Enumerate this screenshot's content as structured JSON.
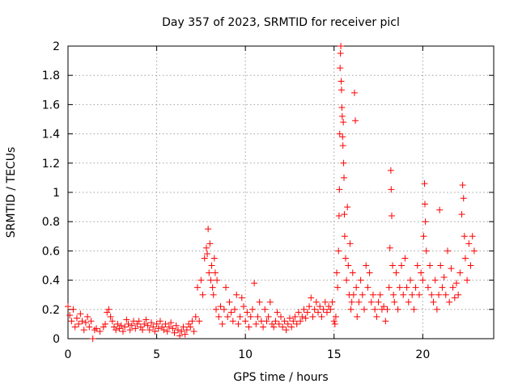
{
  "chart_data": {
    "type": "scatter",
    "title": "Day 357 of 2023, SRMTID for receiver picl",
    "xlabel": "GPS time / hours",
    "ylabel": "SRMTID / TECUs",
    "xlim": [
      0,
      24
    ],
    "ylim": [
      0,
      2
    ],
    "x_ticks": [
      0,
      5,
      10,
      15,
      20
    ],
    "y_ticks": [
      0,
      0.2,
      0.4,
      0.6,
      0.8,
      1,
      1.2,
      1.4,
      1.6,
      1.8,
      2
    ],
    "x_tick_labels": [
      "0",
      "5",
      "10",
      "15",
      "20"
    ],
    "y_tick_labels": [
      "0",
      "0.2",
      "0.4",
      "0.6",
      "0.8",
      "1",
      "1.2",
      "1.4",
      "1.6",
      "1.8",
      "2"
    ],
    "grid": true,
    "marker": "plus",
    "color": "#ff0000",
    "series": [
      {
        "name": "SRMTID",
        "points": [
          [
            0.0,
            0.22
          ],
          [
            0.1,
            0.16
          ],
          [
            0.2,
            0.12
          ],
          [
            0.3,
            0.2
          ],
          [
            0.4,
            0.08
          ],
          [
            0.5,
            0.14
          ],
          [
            0.6,
            0.1
          ],
          [
            0.7,
            0.17
          ],
          [
            0.8,
            0.12
          ],
          [
            0.9,
            0.06
          ],
          [
            1.0,
            0.11
          ],
          [
            1.1,
            0.15
          ],
          [
            1.2,
            0.08
          ],
          [
            1.3,
            0.12
          ],
          [
            1.4,
            0.0
          ],
          [
            1.5,
            0.06
          ],
          [
            1.6,
            0.07
          ],
          [
            1.8,
            0.05
          ],
          [
            2.0,
            0.08
          ],
          [
            2.1,
            0.1
          ],
          [
            2.2,
            0.18
          ],
          [
            2.3,
            0.2
          ],
          [
            2.4,
            0.15
          ],
          [
            2.5,
            0.12
          ],
          [
            2.6,
            0.08
          ],
          [
            2.7,
            0.06
          ],
          [
            2.8,
            0.1
          ],
          [
            2.9,
            0.07
          ],
          [
            3.0,
            0.09
          ],
          [
            3.1,
            0.05
          ],
          [
            3.2,
            0.08
          ],
          [
            3.3,
            0.13
          ],
          [
            3.4,
            0.1
          ],
          [
            3.5,
            0.06
          ],
          [
            3.6,
            0.09
          ],
          [
            3.7,
            0.12
          ],
          [
            3.8,
            0.07
          ],
          [
            3.9,
            0.1
          ],
          [
            4.0,
            0.12
          ],
          [
            4.1,
            0.08
          ],
          [
            4.2,
            0.06
          ],
          [
            4.3,
            0.1
          ],
          [
            4.4,
            0.13
          ],
          [
            4.5,
            0.09
          ],
          [
            4.6,
            0.06
          ],
          [
            4.7,
            0.11
          ],
          [
            4.8,
            0.08
          ],
          [
            4.9,
            0.05
          ],
          [
            5.0,
            0.1
          ],
          [
            5.1,
            0.07
          ],
          [
            5.2,
            0.12
          ],
          [
            5.3,
            0.08
          ],
          [
            5.4,
            0.06
          ],
          [
            5.5,
            0.1
          ],
          [
            5.6,
            0.05
          ],
          [
            5.7,
            0.08
          ],
          [
            5.8,
            0.11
          ],
          [
            5.9,
            0.07
          ],
          [
            6.0,
            0.04
          ],
          [
            6.1,
            0.09
          ],
          [
            6.2,
            0.06
          ],
          [
            6.3,
            0.02
          ],
          [
            6.4,
            0.05
          ],
          [
            6.5,
            0.08
          ],
          [
            6.6,
            0.03
          ],
          [
            6.7,
            0.06
          ],
          [
            6.8,
            0.1
          ],
          [
            6.9,
            0.08
          ],
          [
            7.0,
            0.12
          ],
          [
            7.1,
            0.05
          ],
          [
            7.2,
            0.15
          ],
          [
            7.3,
            0.35
          ],
          [
            7.4,
            0.12
          ],
          [
            7.5,
            0.4
          ],
          [
            7.6,
            0.3
          ],
          [
            7.7,
            0.55
          ],
          [
            7.8,
            0.62
          ],
          [
            7.85,
            0.58
          ],
          [
            7.9,
            0.75
          ],
          [
            7.95,
            0.45
          ],
          [
            8.0,
            0.65
          ],
          [
            8.05,
            0.4
          ],
          [
            8.1,
            0.5
          ],
          [
            8.15,
            0.35
          ],
          [
            8.2,
            0.3
          ],
          [
            8.25,
            0.55
          ],
          [
            8.3,
            0.45
          ],
          [
            8.35,
            0.2
          ],
          [
            8.4,
            0.4
          ],
          [
            8.5,
            0.15
          ],
          [
            8.6,
            0.22
          ],
          [
            8.7,
            0.1
          ],
          [
            8.8,
            0.2
          ],
          [
            8.9,
            0.35
          ],
          [
            9.0,
            0.15
          ],
          [
            9.1,
            0.25
          ],
          [
            9.2,
            0.18
          ],
          [
            9.3,
            0.12
          ],
          [
            9.4,
            0.2
          ],
          [
            9.5,
            0.3
          ],
          [
            9.6,
            0.1
          ],
          [
            9.7,
            0.15
          ],
          [
            9.8,
            0.28
          ],
          [
            9.9,
            0.22
          ],
          [
            10.0,
            0.12
          ],
          [
            10.1,
            0.18
          ],
          [
            10.2,
            0.08
          ],
          [
            10.3,
            0.15
          ],
          [
            10.4,
            0.2
          ],
          [
            10.5,
            0.38
          ],
          [
            10.6,
            0.1
          ],
          [
            10.7,
            0.15
          ],
          [
            10.8,
            0.25
          ],
          [
            10.9,
            0.12
          ],
          [
            11.0,
            0.08
          ],
          [
            11.1,
            0.2
          ],
          [
            11.2,
            0.12
          ],
          [
            11.3,
            0.15
          ],
          [
            11.4,
            0.25
          ],
          [
            11.5,
            0.1
          ],
          [
            11.6,
            0.08
          ],
          [
            11.7,
            0.12
          ],
          [
            11.8,
            0.18
          ],
          [
            11.9,
            0.1
          ],
          [
            12.0,
            0.15
          ],
          [
            12.1,
            0.08
          ],
          [
            12.2,
            0.12
          ],
          [
            12.3,
            0.06
          ],
          [
            12.4,
            0.1
          ],
          [
            12.5,
            0.14
          ],
          [
            12.6,
            0.08
          ],
          [
            12.7,
            0.12
          ],
          [
            12.8,
            0.15
          ],
          [
            12.9,
            0.1
          ],
          [
            13.0,
            0.18
          ],
          [
            13.1,
            0.12
          ],
          [
            13.2,
            0.15
          ],
          [
            13.3,
            0.2
          ],
          [
            13.4,
            0.14
          ],
          [
            13.5,
            0.18
          ],
          [
            13.6,
            0.22
          ],
          [
            13.7,
            0.28
          ],
          [
            13.8,
            0.15
          ],
          [
            13.9,
            0.2
          ],
          [
            14.0,
            0.25
          ],
          [
            14.1,
            0.18
          ],
          [
            14.2,
            0.22
          ],
          [
            14.3,
            0.15
          ],
          [
            14.4,
            0.2
          ],
          [
            14.5,
            0.25
          ],
          [
            14.6,
            0.18
          ],
          [
            14.7,
            0.22
          ],
          [
            14.8,
            0.2
          ],
          [
            14.9,
            0.25
          ],
          [
            15.0,
            0.12
          ],
          [
            15.05,
            0.1
          ],
          [
            15.1,
            0.15
          ],
          [
            15.15,
            0.45
          ],
          [
            15.2,
            0.35
          ],
          [
            15.25,
            0.6
          ],
          [
            15.28,
            0.84
          ],
          [
            15.3,
            1.02
          ],
          [
            15.32,
            1.4
          ],
          [
            15.34,
            1.85
          ],
          [
            15.36,
            1.95
          ],
          [
            15.38,
            2.0
          ],
          [
            15.4,
            1.76
          ],
          [
            15.42,
            1.7
          ],
          [
            15.44,
            1.58
          ],
          [
            15.46,
            1.52
          ],
          [
            15.48,
            1.38
          ],
          [
            15.5,
            1.32
          ],
          [
            15.52,
            1.48
          ],
          [
            15.54,
            1.2
          ],
          [
            15.56,
            1.1
          ],
          [
            15.58,
            0.85
          ],
          [
            15.6,
            0.7
          ],
          [
            15.65,
            0.55
          ],
          [
            15.7,
            0.4
          ],
          [
            15.75,
            0.9
          ],
          [
            15.8,
            0.5
          ],
          [
            15.85,
            0.3
          ],
          [
            15.9,
            0.65
          ],
          [
            15.95,
            0.2
          ],
          [
            16.0,
            0.25
          ],
          [
            16.05,
            0.45
          ],
          [
            16.1,
            0.3
          ],
          [
            16.15,
            1.68
          ],
          [
            16.2,
            1.49
          ],
          [
            16.25,
            0.35
          ],
          [
            16.3,
            0.15
          ],
          [
            16.4,
            0.25
          ],
          [
            16.5,
            0.4
          ],
          [
            16.6,
            0.3
          ],
          [
            16.7,
            0.2
          ],
          [
            16.8,
            0.5
          ],
          [
            16.9,
            0.35
          ],
          [
            17.0,
            0.45
          ],
          [
            17.1,
            0.25
          ],
          [
            17.2,
            0.3
          ],
          [
            17.3,
            0.2
          ],
          [
            17.4,
            0.15
          ],
          [
            17.5,
            0.25
          ],
          [
            17.6,
            0.3
          ],
          [
            17.7,
            0.2
          ],
          [
            17.8,
            0.22
          ],
          [
            17.9,
            0.12
          ],
          [
            18.0,
            0.2
          ],
          [
            18.1,
            0.35
          ],
          [
            18.15,
            0.62
          ],
          [
            18.2,
            1.15
          ],
          [
            18.22,
            1.02
          ],
          [
            18.25,
            0.84
          ],
          [
            18.3,
            0.5
          ],
          [
            18.35,
            0.3
          ],
          [
            18.4,
            0.25
          ],
          [
            18.5,
            0.45
          ],
          [
            18.6,
            0.2
          ],
          [
            18.7,
            0.35
          ],
          [
            18.8,
            0.5
          ],
          [
            18.9,
            0.3
          ],
          [
            19.0,
            0.55
          ],
          [
            19.1,
            0.35
          ],
          [
            19.2,
            0.25
          ],
          [
            19.3,
            0.4
          ],
          [
            19.4,
            0.3
          ],
          [
            19.5,
            0.2
          ],
          [
            19.6,
            0.35
          ],
          [
            19.7,
            0.5
          ],
          [
            19.8,
            0.3
          ],
          [
            19.9,
            0.45
          ],
          [
            20.0,
            0.4
          ],
          [
            20.05,
            0.7
          ],
          [
            20.1,
            1.06
          ],
          [
            20.12,
            0.92
          ],
          [
            20.15,
            0.8
          ],
          [
            20.2,
            0.6
          ],
          [
            20.3,
            0.35
          ],
          [
            20.4,
            0.5
          ],
          [
            20.5,
            0.3
          ],
          [
            20.6,
            0.25
          ],
          [
            20.7,
            0.4
          ],
          [
            20.8,
            0.2
          ],
          [
            20.9,
            0.3
          ],
          [
            20.95,
            0.88
          ],
          [
            21.0,
            0.5
          ],
          [
            21.1,
            0.35
          ],
          [
            21.2,
            0.42
          ],
          [
            21.3,
            0.3
          ],
          [
            21.4,
            0.6
          ],
          [
            21.5,
            0.25
          ],
          [
            21.6,
            0.48
          ],
          [
            21.7,
            0.35
          ],
          [
            21.8,
            0.28
          ],
          [
            21.9,
            0.38
          ],
          [
            22.0,
            0.3
          ],
          [
            22.1,
            0.45
          ],
          [
            22.2,
            0.85
          ],
          [
            22.25,
            1.05
          ],
          [
            22.3,
            0.96
          ],
          [
            22.35,
            0.7
          ],
          [
            22.4,
            0.55
          ],
          [
            22.5,
            0.4
          ],
          [
            22.6,
            0.65
          ],
          [
            22.7,
            0.5
          ],
          [
            22.8,
            0.7
          ],
          [
            22.9,
            0.6
          ]
        ]
      }
    ]
  }
}
